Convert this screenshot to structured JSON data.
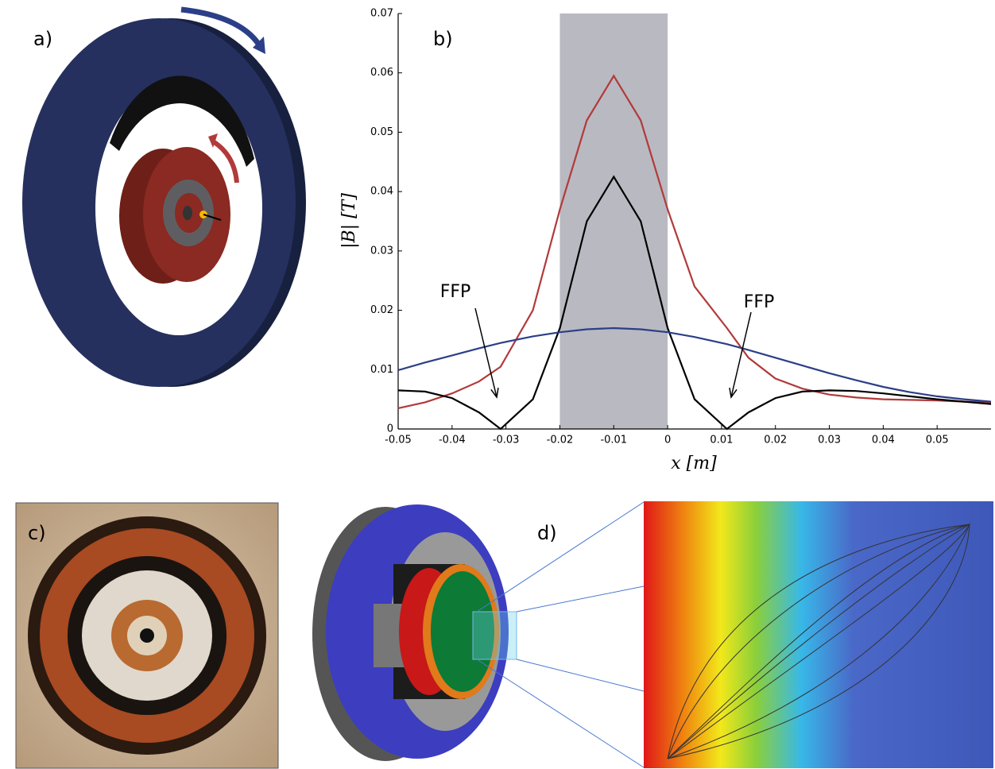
{
  "panels": {
    "a": "a)",
    "c": "c)",
    "d": "d)"
  },
  "chart_data": {
    "type": "line",
    "title": "b)",
    "xlabel": "x [m]",
    "ylabel": "|B| [T]",
    "annotations": [
      "FFP",
      "FFP"
    ],
    "shaded_region": [
      -0.02,
      0
    ],
    "shade_color": "#b9b9c1",
    "x": [
      -0.05,
      -0.045,
      -0.04,
      -0.035,
      -0.031,
      -0.025,
      -0.02,
      -0.015,
      -0.01,
      -0.005,
      0,
      0.005,
      0.011,
      0.015,
      0.02,
      0.025,
      0.03,
      0.035,
      0.04,
      0.045,
      0.05,
      0.055,
      0.06
    ],
    "series": [
      {
        "color": "#b23a3a",
        "values": [
          0.0035,
          0.0045,
          0.006,
          0.008,
          0.0105,
          0.02,
          0.037,
          0.052,
          0.0595,
          0.052,
          0.037,
          0.024,
          0.017,
          0.012,
          0.0085,
          0.0068,
          0.0058,
          0.0053,
          0.005,
          0.0049,
          0.0048,
          0.0046,
          0.0045
        ]
      },
      {
        "color": "#000000",
        "values": [
          0.0065,
          0.0063,
          0.0052,
          0.0028,
          0,
          0.005,
          0.017,
          0.035,
          0.0425,
          0.035,
          0.017,
          0.005,
          0,
          0.0028,
          0.0052,
          0.0063,
          0.0065,
          0.0064,
          0.006,
          0.0055,
          0.005,
          0.0046,
          0.0042
        ]
      },
      {
        "color": "#2b3f88",
        "values": [
          0.0099,
          0.0112,
          0.0124,
          0.0136,
          0.0145,
          0.0156,
          0.0163,
          0.0168,
          0.017,
          0.0168,
          0.0163,
          0.0155,
          0.0143,
          0.0133,
          0.012,
          0.0107,
          0.0094,
          0.0082,
          0.0071,
          0.0062,
          0.0055,
          0.005,
          0.0046
        ]
      }
    ],
    "xlim": [
      -0.05,
      0.06
    ],
    "ylim": [
      0,
      0.07
    ],
    "xticks": [
      -0.05,
      -0.04,
      -0.03,
      -0.02,
      -0.01,
      0,
      0.01,
      0.02,
      0.03,
      0.04,
      0.05
    ],
    "yticks": [
      0,
      0.01,
      0.02,
      0.03,
      0.04,
      0.05,
      0.06,
      0.07
    ]
  }
}
